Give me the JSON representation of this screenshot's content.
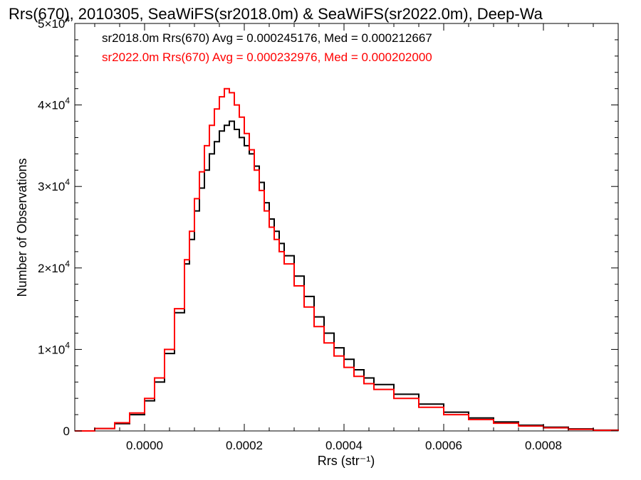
{
  "chart_data": {
    "type": "line",
    "style": "step-histogram",
    "title": "Rrs(670), 2010305, SeaWiFS(sr2018.0m) & SeaWiFS(sr2022.0m), Deep-Wa",
    "xlabel": "Rrs (str⁻¹)",
    "ylabel": "Number of Observations",
    "xlim": [
      -0.00014,
      0.00095
    ],
    "ylim": [
      0,
      50000
    ],
    "x_ticks": [
      {
        "value": 0.0,
        "label": "0.0000"
      },
      {
        "value": 0.0002,
        "label": "0.0002"
      },
      {
        "value": 0.0004,
        "label": "0.0004"
      },
      {
        "value": 0.0006,
        "label": "0.0006"
      },
      {
        "value": 0.0008,
        "label": "0.0008"
      }
    ],
    "y_ticks": [
      {
        "value": 0,
        "label": "0"
      },
      {
        "value": 10000,
        "label": "1×10",
        "exp": "4"
      },
      {
        "value": 20000,
        "label": "2×10",
        "exp": "4"
      },
      {
        "value": 30000,
        "label": "3×10",
        "exp": "4"
      },
      {
        "value": 40000,
        "label": "4×10",
        "exp": "4"
      },
      {
        "value": 50000,
        "label": "5×10",
        "exp": "4"
      }
    ],
    "grid": false,
    "legend_position": "top-left",
    "legend": [
      {
        "text": "sr2018.0m Rrs(670) Avg = 0.000245176, Med = 0.000212667",
        "color": "#000000"
      },
      {
        "text": "sr2022.0m Rrs(670) Avg = 0.000232976, Med = 0.000202000",
        "color": "#ff0000"
      }
    ],
    "series": [
      {
        "color": "#000000",
        "x": [
          -0.00014,
          -0.0001,
          -6e-05,
          -3e-05,
          0.0,
          2e-05,
          4e-05,
          6e-05,
          8e-05,
          9e-05,
          0.0001,
          0.00011,
          0.00012,
          0.00013,
          0.00014,
          0.00015,
          0.00016,
          0.00017,
          0.00018,
          0.00019,
          0.0002,
          0.00021,
          0.00022,
          0.00023,
          0.00024,
          0.00025,
          0.00026,
          0.00027,
          0.00028,
          0.0003,
          0.00032,
          0.00034,
          0.00036,
          0.00038,
          0.0004,
          0.00042,
          0.00044,
          0.00046,
          0.0005,
          0.00055,
          0.0006,
          0.00065,
          0.0007,
          0.00075,
          0.0008,
          0.00085,
          0.0009,
          0.00095
        ],
        "y": [
          0,
          300,
          900,
          2000,
          3700,
          6000,
          9500,
          14500,
          20500,
          23500,
          27000,
          29800,
          32000,
          34000,
          35500,
          36800,
          37500,
          38000,
          37000,
          36000,
          35000,
          34000,
          32500,
          30500,
          28000,
          26000,
          24500,
          23000,
          21500,
          19000,
          16500,
          14000,
          12000,
          10200,
          8800,
          7500,
          6500,
          5700,
          4500,
          3300,
          2300,
          1600,
          1100,
          700,
          450,
          250,
          100,
          30
        ]
      },
      {
        "color": "#ff0000",
        "x": [
          -0.00014,
          -0.0001,
          -6e-05,
          -3e-05,
          0.0,
          2e-05,
          4e-05,
          6e-05,
          8e-05,
          9e-05,
          0.0001,
          0.00011,
          0.00012,
          0.00013,
          0.00014,
          0.00015,
          0.00016,
          0.00017,
          0.00018,
          0.00019,
          0.0002,
          0.00021,
          0.00022,
          0.00023,
          0.00024,
          0.00025,
          0.00026,
          0.00027,
          0.00028,
          0.0003,
          0.00032,
          0.00034,
          0.00036,
          0.00038,
          0.0004,
          0.00042,
          0.00044,
          0.00046,
          0.0005,
          0.00055,
          0.0006,
          0.00065,
          0.0007,
          0.00075,
          0.0008,
          0.00085,
          0.0009,
          0.00095
        ],
        "y": [
          0,
          300,
          1000,
          2200,
          4000,
          6500,
          10000,
          15000,
          21000,
          24500,
          28500,
          31800,
          35000,
          37500,
          39500,
          41000,
          42000,
          41500,
          40000,
          38500,
          36500,
          34500,
          32000,
          29500,
          27000,
          25000,
          23500,
          22000,
          20500,
          17800,
          15200,
          12800,
          10800,
          9200,
          7800,
          6700,
          5800,
          5100,
          4000,
          2900,
          2000,
          1400,
          950,
          600,
          380,
          200,
          80,
          20
        ]
      }
    ]
  }
}
